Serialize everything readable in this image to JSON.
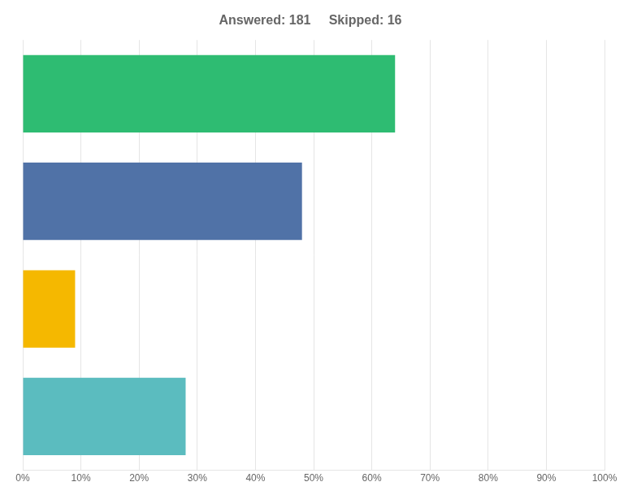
{
  "chart_data": {
    "type": "bar",
    "orientation": "horizontal",
    "title": "Answered: 181     Skipped: 16",
    "categories": [
      null,
      null,
      null,
      null
    ],
    "values": [
      64,
      48,
      9,
      28
    ],
    "colors": [
      "#2ebc72",
      "#5072a7",
      "#f5b800",
      "#5bbcbf"
    ],
    "xlim": [
      0,
      100
    ],
    "xticks": [
      {
        "value": 0,
        "label": "0%"
      },
      {
        "value": 10,
        "label": "10%"
      },
      {
        "value": 20,
        "label": "20%"
      },
      {
        "value": 30,
        "label": "30%"
      },
      {
        "value": 40,
        "label": "40%"
      },
      {
        "value": 50,
        "label": "50%"
      },
      {
        "value": 60,
        "label": "60%"
      },
      {
        "value": 70,
        "label": "70%"
      },
      {
        "value": 80,
        "label": "80%"
      },
      {
        "value": 90,
        "label": "90%"
      },
      {
        "value": 100,
        "label": "100%"
      }
    ],
    "grid": true,
    "tick_labels": "x"
  }
}
